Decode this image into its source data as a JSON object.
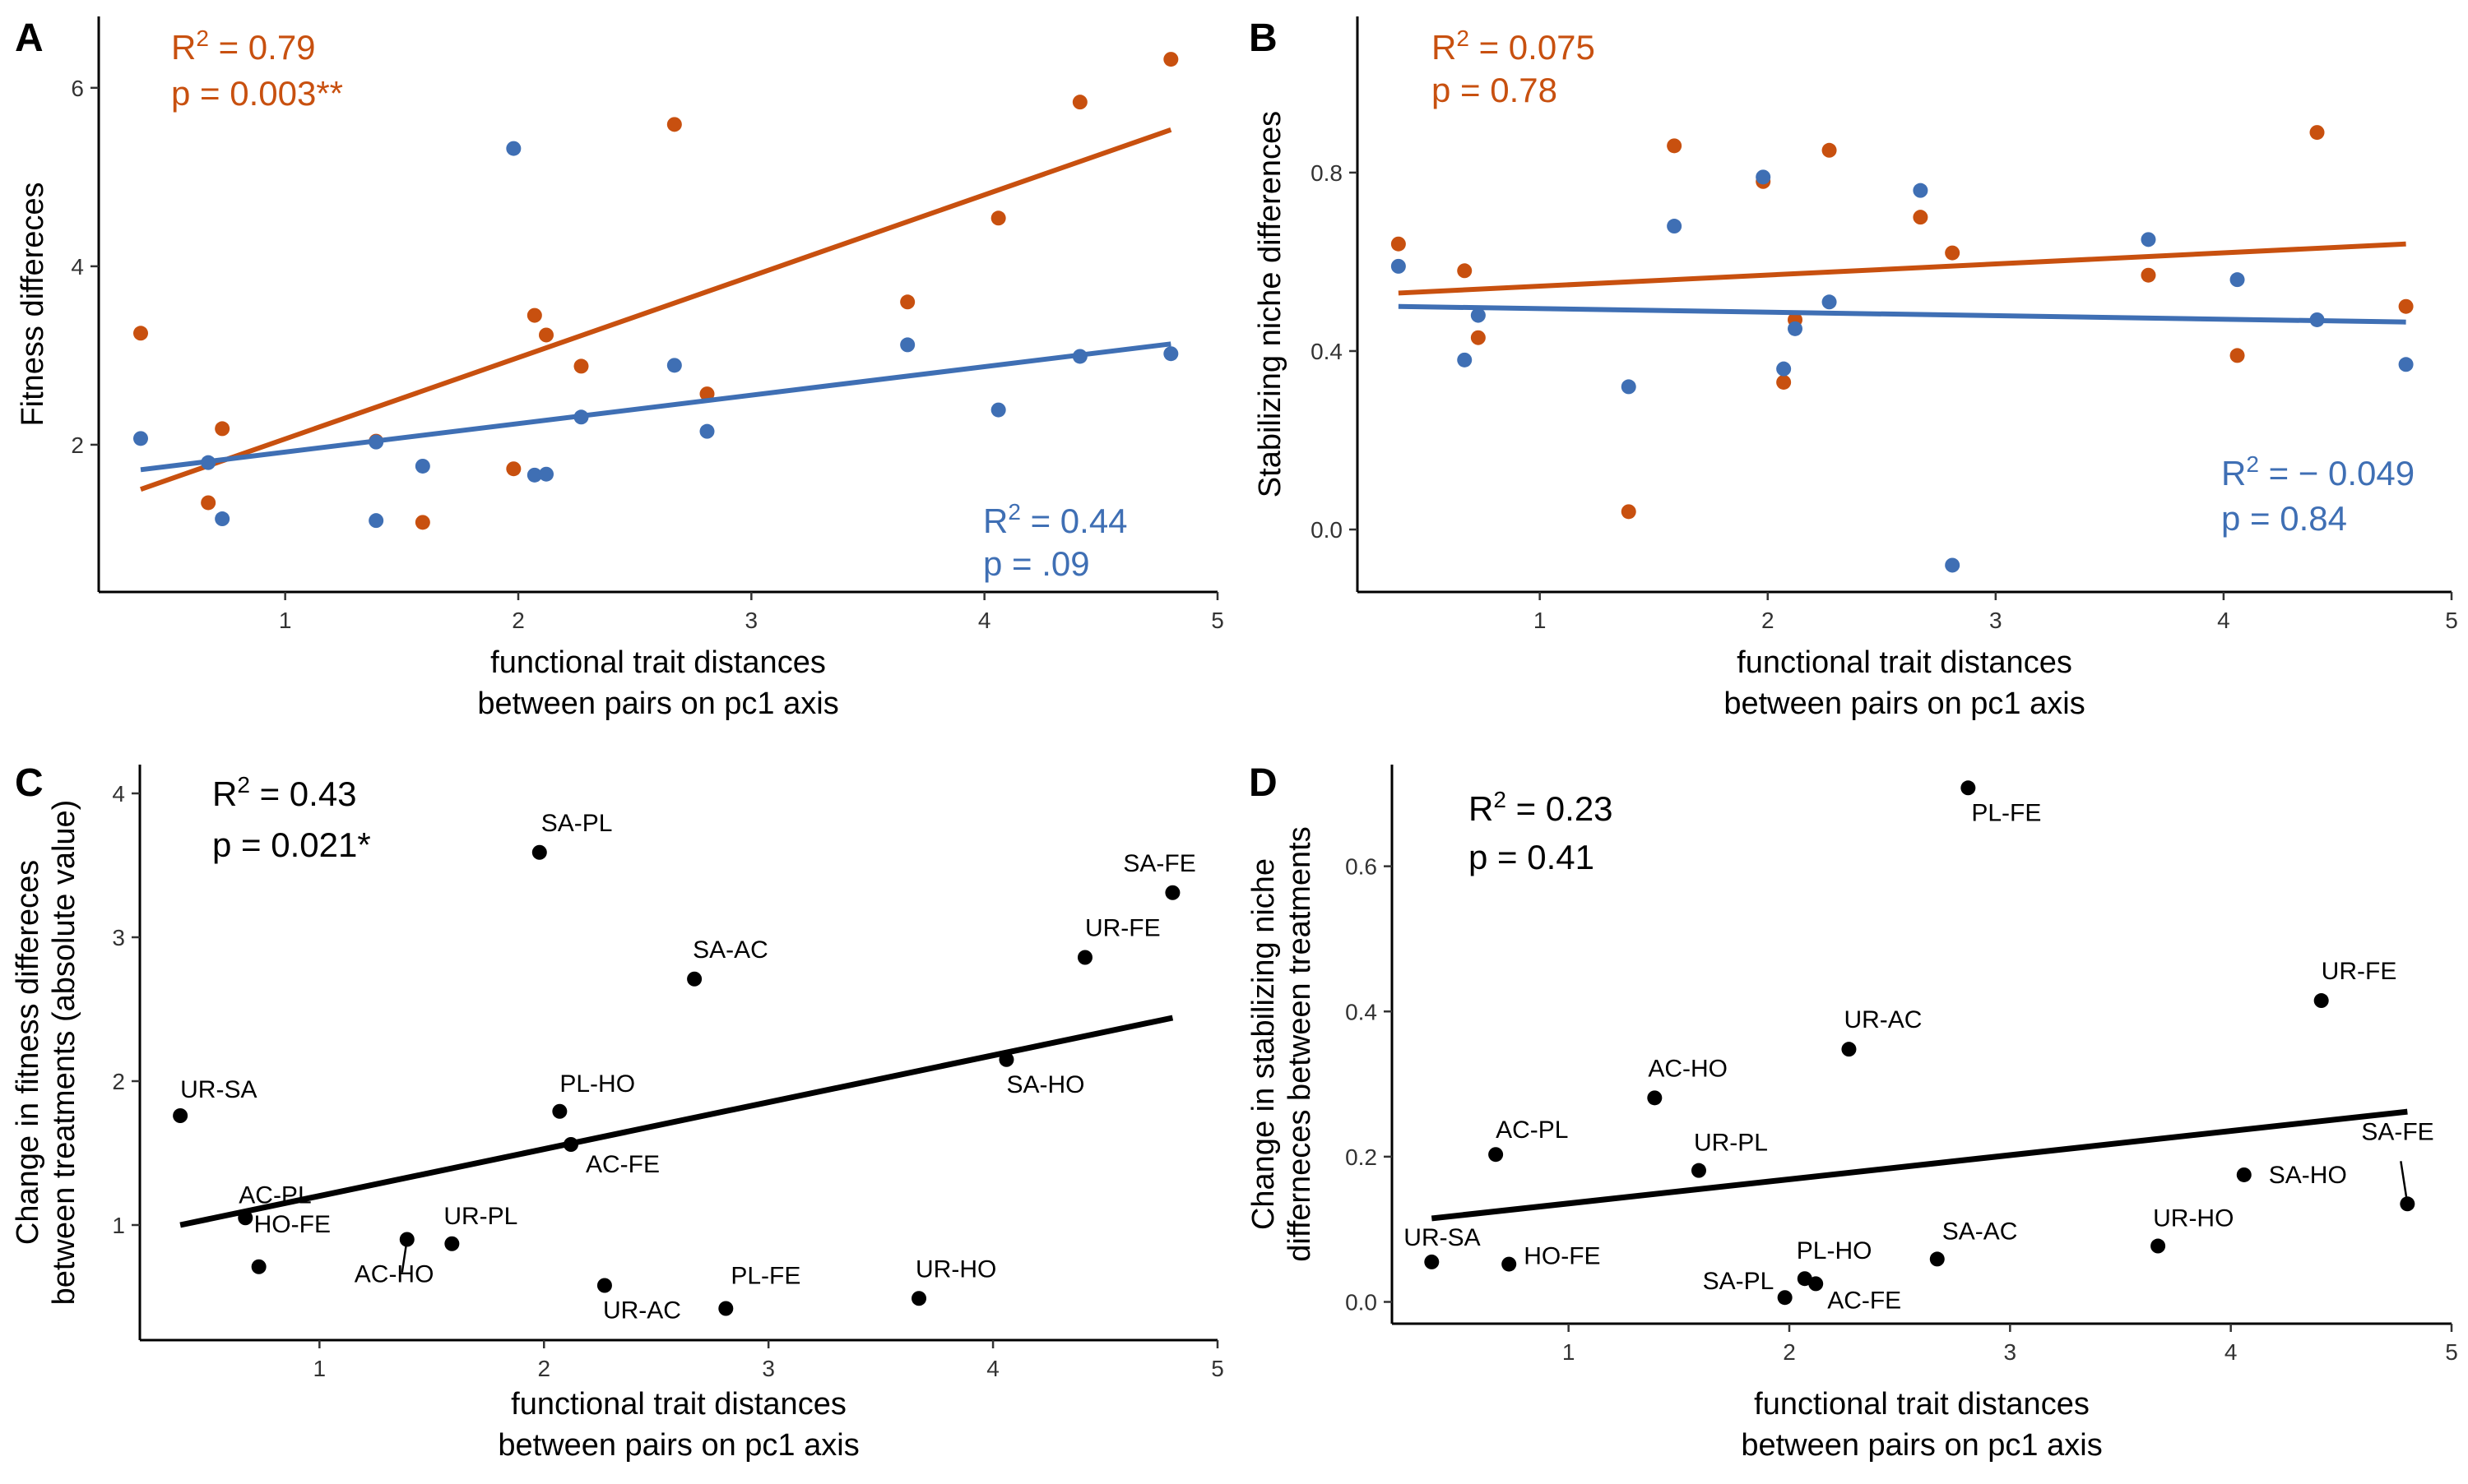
{
  "colors": {
    "orange": "#c8500f",
    "blue": "#3f6fb4",
    "black": "#000000"
  },
  "chart_data": [
    {
      "id": "A",
      "type": "scatter",
      "letter": "A",
      "ylabel": "Fitness differeces",
      "xlabel_line1": "functional trait distances",
      "xlabel_line2": "between pairs on pc1 axis",
      "xlim": [
        0.2,
        5.0
      ],
      "ylim": [
        0.35,
        6.8
      ],
      "xticks": [
        "1",
        "2",
        "3",
        "4",
        "5"
      ],
      "yticks": [
        "2",
        "4",
        "6"
      ],
      "series": [
        {
          "color": "orange",
          "x": [
            0.38,
            0.67,
            0.73,
            1.39,
            1.59,
            1.98,
            2.07,
            2.12,
            2.27,
            2.67,
            2.81,
            3.67,
            4.06,
            4.41,
            4.8
          ],
          "y": [
            3.25,
            1.35,
            2.18,
            2.04,
            1.13,
            1.73,
            3.45,
            3.23,
            2.88,
            5.59,
            2.57,
            3.6,
            4.54,
            5.84,
            6.32
          ],
          "fit": {
            "x": [
              0.38,
              4.8
            ],
            "y": [
              1.5,
              5.53
            ]
          },
          "stat_line1_pre": "R",
          "stat_line1_post": " = 0.79",
          "stat_line2": "p = 0.003**"
        },
        {
          "color": "blue",
          "x": [
            0.38,
            0.67,
            0.73,
            1.39,
            1.39,
            1.59,
            1.98,
            2.07,
            2.12,
            2.27,
            2.67,
            2.81,
            3.67,
            4.06,
            4.41,
            4.8
          ],
          "y": [
            2.07,
            1.8,
            1.17,
            2.03,
            1.15,
            1.76,
            5.32,
            1.66,
            1.67,
            2.31,
            2.89,
            2.15,
            3.12,
            2.39,
            2.99,
            3.02
          ],
          "fit": {
            "x": [
              0.38,
              4.8
            ],
            "y": [
              1.72,
              3.13
            ]
          },
          "stat_line1_pre": "R",
          "stat_line1_post": " = 0.44",
          "stat_line2": "p = .09"
        }
      ]
    },
    {
      "id": "B",
      "type": "scatter",
      "letter": "B",
      "ylabel": "Stabilizing niche differences",
      "xlabel_line1": "functional trait distances",
      "xlabel_line2": "between pairs on pc1 axis",
      "xlim": [
        0.2,
        5.0
      ],
      "ylim": [
        -0.14,
        1.15
      ],
      "xticks": [
        "1",
        "2",
        "3",
        "4",
        "5"
      ],
      "yticks": [
        "0.0",
        "0.4",
        "0.8"
      ],
      "series": [
        {
          "color": "orange",
          "x": [
            0.38,
            0.67,
            0.73,
            1.39,
            1.59,
            1.98,
            2.07,
            2.12,
            2.27,
            2.67,
            2.81,
            3.67,
            4.06,
            4.41,
            4.8
          ],
          "y": [
            0.64,
            0.58,
            0.43,
            0.04,
            0.86,
            0.78,
            0.33,
            0.47,
            0.85,
            0.7,
            0.62,
            0.57,
            0.39,
            0.89,
            0.5
          ],
          "fit": {
            "x": [
              0.38,
              4.8
            ],
            "y": [
              0.53,
              0.64
            ]
          },
          "stat_line1_pre": "R",
          "stat_line1_post": " = 0.075",
          "stat_line2": "p = 0.78"
        },
        {
          "color": "blue",
          "x": [
            0.38,
            0.67,
            0.73,
            1.39,
            1.59,
            1.98,
            2.07,
            2.12,
            2.27,
            2.67,
            2.81,
            3.67,
            4.06,
            4.41,
            4.8
          ],
          "y": [
            0.59,
            0.38,
            0.48,
            0.32,
            0.68,
            0.79,
            0.36,
            0.45,
            0.51,
            0.76,
            -0.08,
            0.65,
            0.56,
            0.47,
            0.37
          ],
          "fit": {
            "x": [
              0.38,
              4.8
            ],
            "y": [
              0.5,
              0.465
            ]
          },
          "stat_line1_pre": "R",
          "stat_line1_post": " = − 0.049",
          "stat_line2": "p = 0.84"
        }
      ]
    },
    {
      "id": "C",
      "type": "scatter",
      "letter": "C",
      "ylabel_line1": "Change in fitness differeces",
      "ylabel_line2": "between treatments (absolute value)",
      "xlabel_line1": "functional trait distances",
      "xlabel_line2": "between pairs on pc1 axis",
      "xlim": [
        0.2,
        5.0
      ],
      "ylim": [
        0.2,
        4.2
      ],
      "xticks": [
        "1",
        "2",
        "3",
        "4",
        "5"
      ],
      "yticks": [
        "1",
        "2",
        "3",
        "4"
      ],
      "stat_line1_pre": "R",
      "stat_line1_post": " = 0.43",
      "stat_line2": "p = 0.021*",
      "fit": {
        "x": [
          0.38,
          4.8
        ],
        "y": [
          1.0,
          2.44
        ]
      },
      "points": [
        {
          "label": "UR-SA",
          "x": 0.38,
          "y": 1.76
        },
        {
          "label": "AC-PL",
          "x": 0.67,
          "y": 1.05
        },
        {
          "label": "HO-FE",
          "x": 0.73,
          "y": 0.71
        },
        {
          "label": "AC-HO",
          "x": 1.39,
          "y": 0.9
        },
        {
          "label": "UR-PL",
          "x": 1.59,
          "y": 0.87
        },
        {
          "label": "SA-PL",
          "x": 1.98,
          "y": 3.59
        },
        {
          "label": "PL-HO",
          "x": 2.07,
          "y": 1.79
        },
        {
          "label": "AC-FE",
          "x": 2.12,
          "y": 1.56
        },
        {
          "label": "UR-AC",
          "x": 2.27,
          "y": 0.58
        },
        {
          "label": "SA-AC",
          "x": 2.67,
          "y": 2.71
        },
        {
          "label": "PL-FE",
          "x": 2.81,
          "y": 0.42
        },
        {
          "label": "UR-HO",
          "x": 3.67,
          "y": 0.49
        },
        {
          "label": "SA-HO",
          "x": 4.06,
          "y": 2.15
        },
        {
          "label": "UR-FE",
          "x": 4.41,
          "y": 2.86
        },
        {
          "label": "SA-FE",
          "x": 4.8,
          "y": 3.31
        }
      ]
    },
    {
      "id": "D",
      "type": "scatter",
      "letter": "D",
      "ylabel_line1": "Change in stabilizing niche",
      "ylabel_line2": "differneces between treatments",
      "xlabel_line1": "functional trait distances",
      "xlabel_line2": "between pairs on pc1 axis",
      "xlim": [
        0.2,
        5.0
      ],
      "ylim": [
        -0.03,
        0.74
      ],
      "xticks": [
        "1",
        "2",
        "3",
        "4",
        "5"
      ],
      "yticks": [
        "0.0",
        "0.2",
        "0.4",
        "0.6"
      ],
      "stat_line1_pre": "R",
      "stat_line1_post": " = 0.23",
      "stat_line2": "p = 0.41",
      "fit": {
        "x": [
          0.38,
          4.8
        ],
        "y": [
          0.115,
          0.262
        ]
      },
      "points": [
        {
          "label": "UR-SA",
          "x": 0.38,
          "y": 0.055
        },
        {
          "label": "AC-PL",
          "x": 0.67,
          "y": 0.203
        },
        {
          "label": "HO-FE",
          "x": 0.73,
          "y": 0.052
        },
        {
          "label": "AC-HO",
          "x": 1.39,
          "y": 0.281
        },
        {
          "label": "UR-PL",
          "x": 1.59,
          "y": 0.181
        },
        {
          "label": "SA-PL",
          "x": 1.98,
          "y": 0.006
        },
        {
          "label": "PL-HO",
          "x": 2.07,
          "y": 0.032
        },
        {
          "label": "AC-FE",
          "x": 2.12,
          "y": 0.025
        },
        {
          "label": "UR-AC",
          "x": 2.27,
          "y": 0.348
        },
        {
          "label": "SA-AC",
          "x": 2.67,
          "y": 0.059
        },
        {
          "label": "PL-FE",
          "x": 2.81,
          "y": 0.708
        },
        {
          "label": "UR-HO",
          "x": 3.67,
          "y": 0.077
        },
        {
          "label": "SA-HO",
          "x": 4.06,
          "y": 0.175
        },
        {
          "label": "UR-FE",
          "x": 4.41,
          "y": 0.415
        },
        {
          "label": "SA-FE",
          "x": 4.8,
          "y": 0.135
        }
      ]
    }
  ]
}
